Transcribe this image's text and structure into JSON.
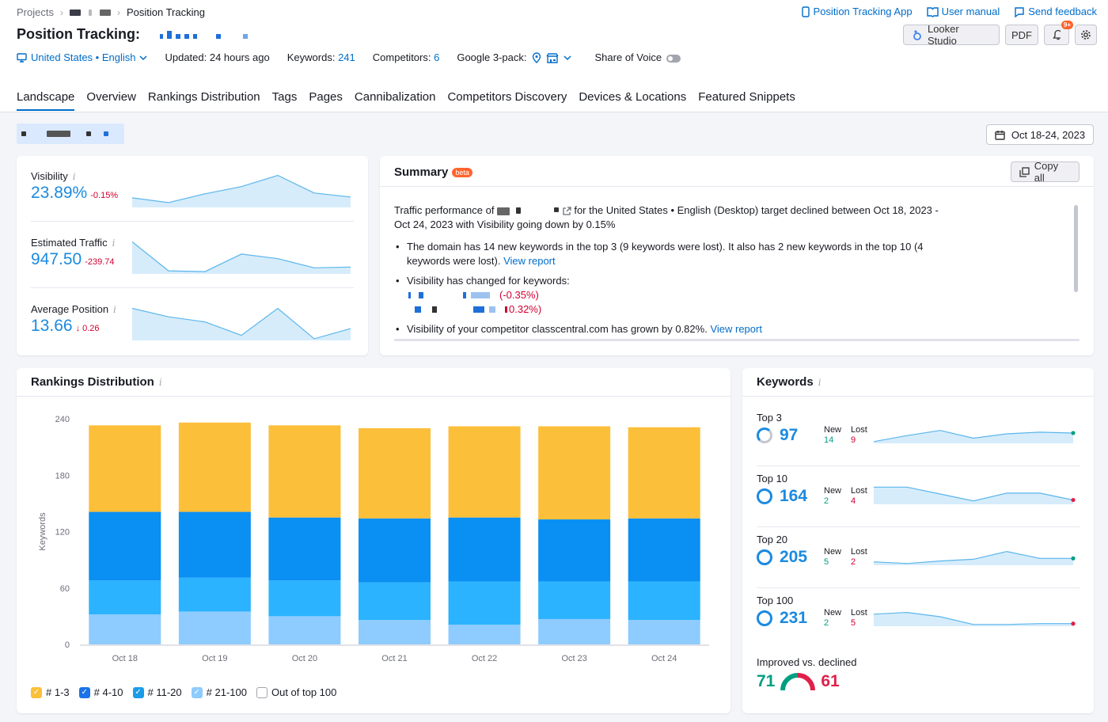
{
  "breadcrumb": {
    "projects": "Projects",
    "current": "Position Tracking"
  },
  "top_links": {
    "app": "Position Tracking App",
    "manual": "User manual",
    "feedback": "Send feedback"
  },
  "page_title": "Position Tracking:",
  "toolbar": {
    "looker": "Looker Studio",
    "pdf": "PDF",
    "notif_badge": "9+"
  },
  "meta": {
    "location": "United States • English",
    "updated": "Updated: 24 hours ago",
    "keywords_label": "Keywords:",
    "keywords_value": "241",
    "competitors_label": "Competitors:",
    "competitors_value": "6",
    "google3pack": "Google 3-pack:",
    "share_of_voice": "Share of Voice"
  },
  "tabs": [
    "Landscape",
    "Overview",
    "Rankings Distribution",
    "Tags",
    "Pages",
    "Cannibalization",
    "Competitors Discovery",
    "Devices & Locations",
    "Featured Snippets"
  ],
  "date_range": "Oct 18-24, 2023",
  "kpis": [
    {
      "label": "Visibility",
      "value": "23.89%",
      "delta": "-0.15%",
      "spark": [
        0.6,
        0.3,
        0.85,
        1.3,
        2.0,
        0.9,
        0.65
      ]
    },
    {
      "label": "Estimated Traffic",
      "value": "947.50",
      "delta": "-239.74",
      "spark": [
        2.1,
        0.2,
        0.15,
        1.3,
        1.0,
        0.4,
        0.45
      ]
    },
    {
      "label": "Average Position",
      "value": "13.66",
      "delta": "↓ 0.26",
      "spark": [
        1.9,
        1.4,
        1.1,
        0.3,
        1.9,
        0.1,
        0.7
      ]
    }
  ],
  "summary": {
    "title": "Summary",
    "beta": "beta",
    "copy_all": "Copy all",
    "intro_a": "Traffic performance of",
    "intro_b": "for the United States • English (Desktop) target declined between Oct 18, 2023 - Oct 24, 2023 with Visibility going down by 0.15%",
    "b1": "The domain has 14 new keywords in the top 3 (9 keywords were lost). It also has 2 new keywords in the top 10 (4 keywords were lost).",
    "view_report": "View report",
    "b2": "Visibility has changed for keywords:",
    "kw1_delta": "(-0.35%)",
    "kw2_delta": "0.32%)",
    "b3": "Visibility of your competitor classcentral.com has grown by 0.82%."
  },
  "rankings": {
    "title": "Rankings Distribution",
    "legend": [
      "# 1-3",
      "# 4-10",
      "# 11-20",
      "# 21-100",
      "Out of top 100"
    ]
  },
  "chart_data": {
    "type": "bar",
    "stacked": true,
    "categories": [
      "Oct 18",
      "Oct 19",
      "Oct 20",
      "Oct 21",
      "Oct 22",
      "Oct 23",
      "Oct 24"
    ],
    "ylabel": "Keywords",
    "ylim": [
      0,
      240
    ],
    "yticks": [
      0,
      60,
      120,
      180,
      240
    ],
    "series": [
      {
        "name": "# 21-100",
        "color": "#8ecbff",
        "values": [
          32,
          35,
          30,
          26,
          21,
          27,
          26
        ]
      },
      {
        "name": "# 11-20",
        "color": "#2bb3ff",
        "values": [
          36,
          36,
          38,
          40,
          46,
          40,
          41
        ]
      },
      {
        "name": "# 4-10",
        "color": "#0a8ff2",
        "values": [
          73,
          70,
          67,
          68,
          68,
          66,
          67
        ]
      },
      {
        "name": "# 1-3",
        "color": "#fcbf3a",
        "values": [
          92,
          95,
          98,
          96,
          97,
          99,
          97
        ]
      }
    ]
  },
  "keywords": {
    "title": "Keywords",
    "new_label": "New",
    "lost_label": "Lost",
    "rows": [
      {
        "label": "Top 3",
        "value": "97",
        "new": "14",
        "lost": "9",
        "end": "green",
        "spark": [
          0.2,
          0.9,
          1.5,
          0.6,
          1.1,
          1.3,
          1.2
        ]
      },
      {
        "label": "Top 10",
        "value": "164",
        "new": "2",
        "lost": "4",
        "end": "red",
        "spark": [
          2.0,
          2.0,
          1.2,
          0.4,
          1.3,
          1.3,
          0.5
        ]
      },
      {
        "label": "Top 20",
        "value": "205",
        "new": "5",
        "lost": "2",
        "end": "green",
        "spark": [
          0.4,
          0.2,
          0.5,
          0.7,
          1.6,
          0.8,
          0.8
        ]
      },
      {
        "label": "Top 100",
        "value": "231",
        "new": "2",
        "lost": "5",
        "end": "red",
        "spark": [
          1.4,
          1.6,
          1.1,
          0.2,
          0.2,
          0.3,
          0.3
        ]
      }
    ],
    "improved_label": "Improved vs. declined",
    "improved": "71",
    "declined": "61"
  }
}
